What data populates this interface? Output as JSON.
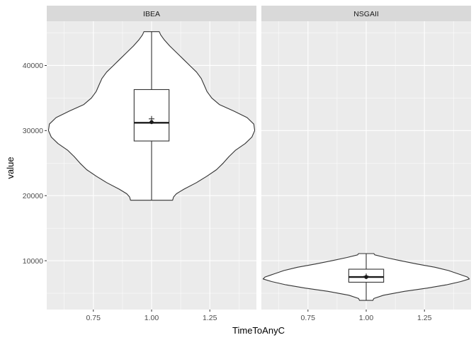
{
  "chart_data": {
    "type": "violin",
    "xlabel": "TimeToAnyC",
    "ylabel": "value",
    "x_ticks": [
      "0.75",
      "1.00",
      "1.25"
    ],
    "x_tick_values": [
      0.75,
      1.0,
      1.25
    ],
    "xlim": [
      0.55,
      1.45
    ],
    "y_ticks": [
      "10000",
      "20000",
      "30000",
      "40000"
    ],
    "y_tick_values": [
      10000,
      20000,
      30000,
      40000
    ],
    "ylim": [
      2500,
      46800
    ],
    "grid": true,
    "colors": {
      "panel_bg": "#ebebeb",
      "strip_bg": "#d9d9d9",
      "grid": "#ffffff",
      "violin_fill": "#ffffff",
      "outline": "#333333"
    },
    "panels": [
      {
        "label": "IBEA",
        "x": 1.0,
        "min": 19300,
        "max": 45200,
        "violin_profile": [
          [
            19300,
            0.11
          ],
          [
            19800,
            0.115
          ],
          [
            20300,
            0.13
          ],
          [
            21000,
            0.17
          ],
          [
            22000,
            0.235
          ],
          [
            23000,
            0.29
          ],
          [
            24000,
            0.34
          ],
          [
            25000,
            0.375
          ],
          [
            26000,
            0.405
          ],
          [
            27000,
            0.44
          ],
          [
            28000,
            0.49
          ],
          [
            29000,
            0.525
          ],
          [
            30000,
            0.54
          ],
          [
            31000,
            0.535
          ],
          [
            32000,
            0.5
          ],
          [
            33000,
            0.43
          ],
          [
            34000,
            0.355
          ],
          [
            35000,
            0.315
          ],
          [
            36000,
            0.29
          ],
          [
            37000,
            0.275
          ],
          [
            38000,
            0.26
          ],
          [
            39000,
            0.235
          ],
          [
            40000,
            0.2
          ],
          [
            41000,
            0.165
          ],
          [
            42000,
            0.13
          ],
          [
            43000,
            0.095
          ],
          [
            44000,
            0.065
          ],
          [
            44700,
            0.048
          ],
          [
            45200,
            0.04
          ]
        ],
        "box": {
          "q1": 28400,
          "median": 31200,
          "q3": 36300,
          "whisker_low": 19300,
          "whisker_high": 45200
        },
        "mean": 31800,
        "point": 31300
      },
      {
        "label": "NSGAII",
        "x": 1.0,
        "min": 3900,
        "max": 11100,
        "violin_profile": [
          [
            3900,
            0.035
          ],
          [
            4200,
            0.04
          ],
          [
            4700,
            0.09
          ],
          [
            5300,
            0.2
          ],
          [
            5800,
            0.32
          ],
          [
            6300,
            0.42
          ],
          [
            6800,
            0.495
          ],
          [
            7200,
            0.54
          ],
          [
            7500,
            0.53
          ],
          [
            8000,
            0.48
          ],
          [
            8500,
            0.43
          ],
          [
            9000,
            0.36
          ],
          [
            9500,
            0.265
          ],
          [
            10000,
            0.18
          ],
          [
            10500,
            0.1
          ],
          [
            10900,
            0.045
          ],
          [
            11100,
            0.04
          ]
        ],
        "box": {
          "q1": 6700,
          "median": 7500,
          "q3": 8700,
          "whisker_low": 3900,
          "whisker_high": 11100
        },
        "mean": 7600,
        "point": 7500
      }
    ]
  }
}
